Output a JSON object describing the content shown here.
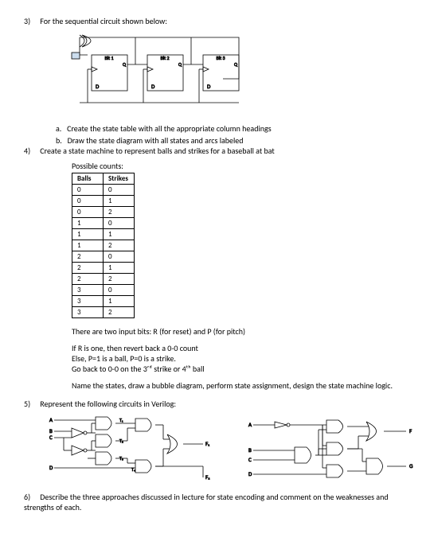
{
  "q3": {
    "num": "3)",
    "text": "For the sequential circuit shown below:",
    "bits": [
      "Bit 1",
      "Bit 2",
      "Bit 3"
    ],
    "a_label": "a.",
    "a_text": "Create the state table with all the appropriate column headings",
    "b_label": "b.",
    "b_text": "Draw the state diagram with all states and arcs labeled"
  },
  "q4": {
    "num": "4)",
    "text": "Create a state machine to represent balls and strikes for a baseball at bat",
    "table_title": "Possible counts:",
    "headers": [
      "Balls",
      "Strikes"
    ],
    "rows": [
      [
        "0",
        "0"
      ],
      [
        "0",
        "1"
      ],
      [
        "0",
        "2"
      ],
      [
        "1",
        "0"
      ],
      [
        "1",
        "1"
      ],
      [
        "1",
        "2"
      ],
      [
        "2",
        "0"
      ],
      [
        "2",
        "1"
      ],
      [
        "2",
        "2"
      ],
      [
        "3",
        "0"
      ],
      [
        "3",
        "1"
      ],
      [
        "3",
        "2"
      ]
    ],
    "p1": "There are two input bits: R (for reset) and P (for pitch)",
    "p2a": "If R is one, then revert back a 0-0 count",
    "p2b": "Else, P=1 is a ball, P=0 is a strike.",
    "p2c": "Go back to 0-0 on the 3ʳᵈ strike or 4ᵗʰ ball",
    "p3": "Name the states, draw a bubble diagram, perform state assignment, design the state machine logic."
  },
  "q5": {
    "num": "5)",
    "text": "Represent the following circuits in Verilog:",
    "labels_left": {
      "A": "A",
      "B": "B",
      "C": "C",
      "D": "D",
      "T1": "T₁",
      "T2": "T₂",
      "T3": "T₃",
      "T4": "T₄",
      "F1": "F₁",
      "F2": "F₂"
    },
    "labels_right": {
      "A": "A",
      "B": "B",
      "C": "C",
      "D": "D",
      "F": "F",
      "G": "G"
    }
  },
  "q6": {
    "num": "6)",
    "text": "Describe the three approaches discussed in lecture for state encoding and comment on the weaknesses and strengths of each."
  },
  "colors": {
    "stroke": "#000000",
    "fill": "#ffffff"
  }
}
